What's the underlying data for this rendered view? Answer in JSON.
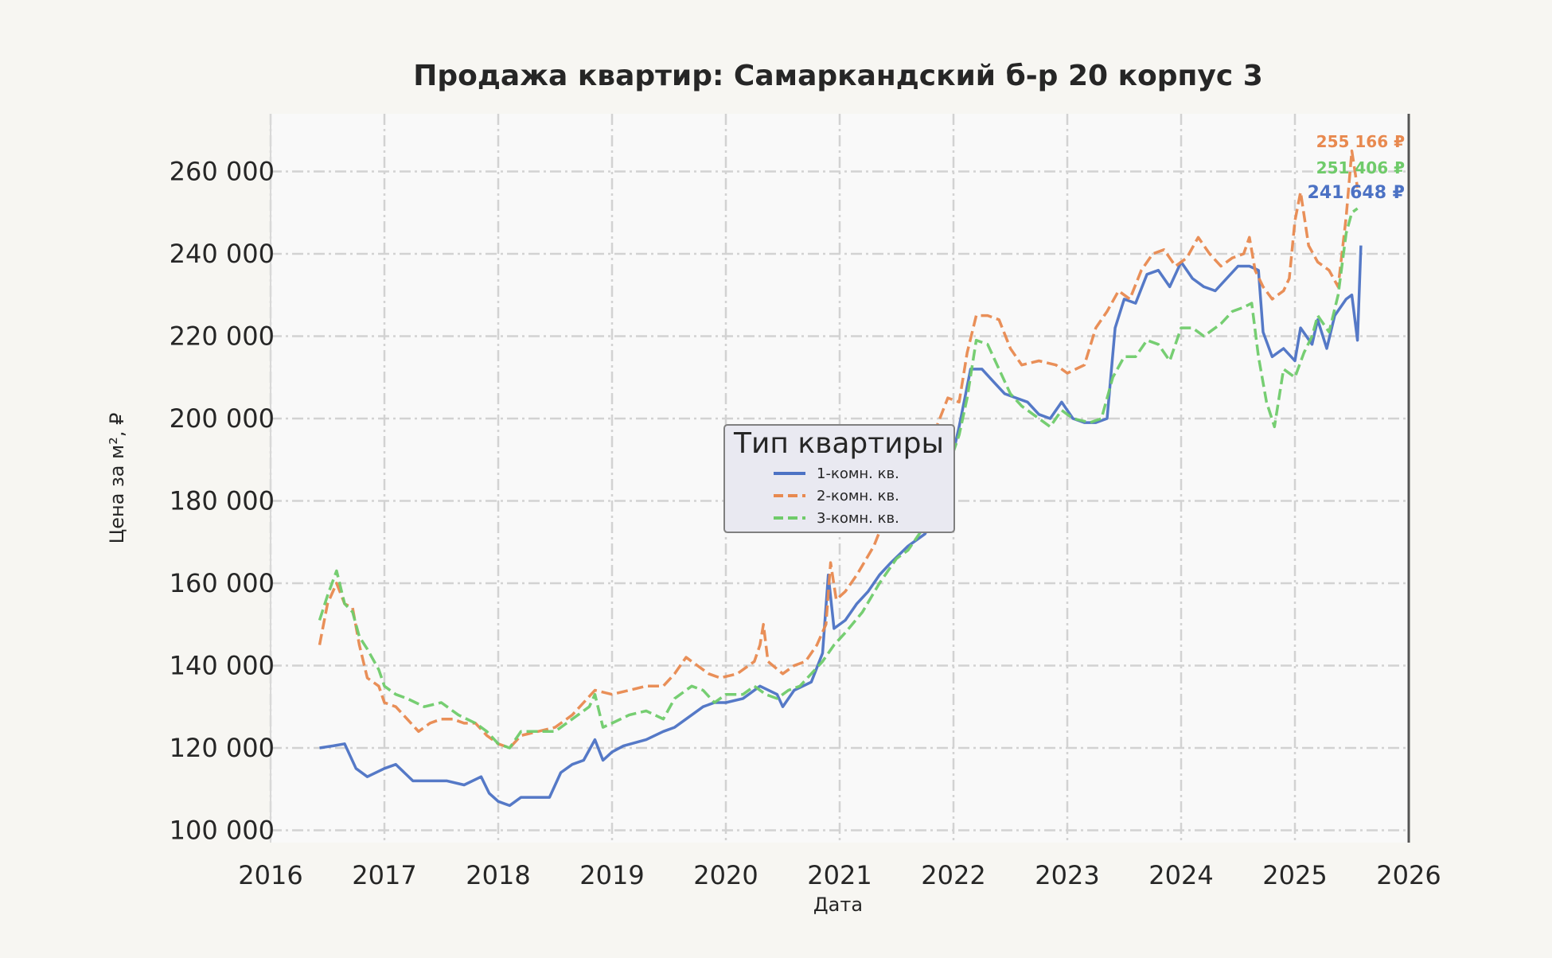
{
  "chart_data": {
    "type": "line",
    "title": "Продажа квартир: Самаркандский б-р 20 корпус 3",
    "xlabel": "Дата",
    "ylabel": "Цена за м², ₽",
    "xlim": [
      2016.0,
      2026.0
    ],
    "ylim": [
      97000,
      274000
    ],
    "x_ticks": [
      "2016",
      "2017",
      "2018",
      "2019",
      "2020",
      "2021",
      "2022",
      "2023",
      "2024",
      "2025",
      "2026"
    ],
    "y_ticks": [
      100000,
      120000,
      140000,
      160000,
      180000,
      200000,
      220000,
      240000,
      260000
    ],
    "y_tick_labels": [
      "100 000",
      "120 000",
      "140 000",
      "160 000",
      "180 000",
      "200 000",
      "220 000",
      "240 000",
      "260 000"
    ],
    "grid": true,
    "legend": {
      "title": "Тип квартиры",
      "placement": "center"
    },
    "colors": {
      "series1": "#4c72c4",
      "series2": "#e8894f",
      "series3": "#6fcb6a",
      "background": "#f7f6f2",
      "plot_bg": "#f9f9f9"
    },
    "series": [
      {
        "name": "1-комн. кв.",
        "style": "solid",
        "last_label": "241 648 ₽",
        "points": [
          [
            2016.43,
            120000
          ],
          [
            2016.55,
            120500
          ],
          [
            2016.65,
            121000
          ],
          [
            2016.75,
            115000
          ],
          [
            2016.85,
            113000
          ],
          [
            2017.0,
            115000
          ],
          [
            2017.1,
            116000
          ],
          [
            2017.25,
            112000
          ],
          [
            2017.4,
            112000
          ],
          [
            2017.55,
            112000
          ],
          [
            2017.7,
            111000
          ],
          [
            2017.85,
            113000
          ],
          [
            2017.92,
            109000
          ],
          [
            2018.0,
            107000
          ],
          [
            2018.1,
            106000
          ],
          [
            2018.2,
            108000
          ],
          [
            2018.3,
            108000
          ],
          [
            2018.45,
            108000
          ],
          [
            2018.55,
            114000
          ],
          [
            2018.65,
            116000
          ],
          [
            2018.75,
            117000
          ],
          [
            2018.85,
            122000
          ],
          [
            2018.92,
            117000
          ],
          [
            2019.0,
            119000
          ],
          [
            2019.1,
            120500
          ],
          [
            2019.3,
            122000
          ],
          [
            2019.45,
            124000
          ],
          [
            2019.55,
            125000
          ],
          [
            2019.7,
            128000
          ],
          [
            2019.8,
            130000
          ],
          [
            2019.9,
            131000
          ],
          [
            2020.0,
            131000
          ],
          [
            2020.15,
            132000
          ],
          [
            2020.3,
            135000
          ],
          [
            2020.45,
            133000
          ],
          [
            2020.5,
            130000
          ],
          [
            2020.6,
            134000
          ],
          [
            2020.75,
            136000
          ],
          [
            2020.85,
            143000
          ],
          [
            2020.9,
            162000
          ],
          [
            2020.95,
            149000
          ],
          [
            2021.05,
            151000
          ],
          [
            2021.15,
            155000
          ],
          [
            2021.25,
            158000
          ],
          [
            2021.35,
            162000
          ],
          [
            2021.45,
            165000
          ],
          [
            2021.6,
            169000
          ],
          [
            2021.75,
            172000
          ],
          [
            2021.85,
            178000
          ],
          [
            2021.95,
            186000
          ],
          [
            2022.05,
            198000
          ],
          [
            2022.15,
            212000
          ],
          [
            2022.25,
            212000
          ],
          [
            2022.35,
            209000
          ],
          [
            2022.45,
            206000
          ],
          [
            2022.55,
            205000
          ],
          [
            2022.65,
            204000
          ],
          [
            2022.75,
            201000
          ],
          [
            2022.85,
            200000
          ],
          [
            2022.95,
            204000
          ],
          [
            2023.05,
            200000
          ],
          [
            2023.15,
            199000
          ],
          [
            2023.25,
            199000
          ],
          [
            2023.35,
            200000
          ],
          [
            2023.42,
            222000
          ],
          [
            2023.5,
            229000
          ],
          [
            2023.6,
            228000
          ],
          [
            2023.7,
            235000
          ],
          [
            2023.8,
            236000
          ],
          [
            2023.9,
            232000
          ],
          [
            2024.0,
            238000
          ],
          [
            2024.1,
            234000
          ],
          [
            2024.2,
            232000
          ],
          [
            2024.3,
            231000
          ],
          [
            2024.4,
            234000
          ],
          [
            2024.5,
            237000
          ],
          [
            2024.6,
            237000
          ],
          [
            2024.68,
            236000
          ],
          [
            2024.72,
            221000
          ],
          [
            2024.8,
            215000
          ],
          [
            2024.9,
            217000
          ],
          [
            2025.0,
            214000
          ],
          [
            2025.05,
            222000
          ],
          [
            2025.15,
            218000
          ],
          [
            2025.2,
            224000
          ],
          [
            2025.28,
            217000
          ],
          [
            2025.35,
            225000
          ],
          [
            2025.45,
            229000
          ],
          [
            2025.5,
            230000
          ],
          [
            2025.55,
            219000
          ],
          [
            2025.58,
            242000
          ]
        ]
      },
      {
        "name": "2-комн. кв.",
        "style": "dashed",
        "last_label": "255 166 ₽",
        "points": [
          [
            2016.43,
            145000
          ],
          [
            2016.5,
            155000
          ],
          [
            2016.58,
            160000
          ],
          [
            2016.65,
            155000
          ],
          [
            2016.72,
            154000
          ],
          [
            2016.78,
            145000
          ],
          [
            2016.85,
            137000
          ],
          [
            2016.95,
            135000
          ],
          [
            2017.0,
            131000
          ],
          [
            2017.1,
            130000
          ],
          [
            2017.2,
            127000
          ],
          [
            2017.3,
            124000
          ],
          [
            2017.4,
            126000
          ],
          [
            2017.5,
            127000
          ],
          [
            2017.6,
            127000
          ],
          [
            2017.7,
            126000
          ],
          [
            2017.8,
            126000
          ],
          [
            2017.9,
            123000
          ],
          [
            2018.0,
            121000
          ],
          [
            2018.1,
            120000
          ],
          [
            2018.2,
            123000
          ],
          [
            2018.35,
            124000
          ],
          [
            2018.5,
            125000
          ],
          [
            2018.65,
            128000
          ],
          [
            2018.75,
            131000
          ],
          [
            2018.85,
            134000
          ],
          [
            2019.0,
            133000
          ],
          [
            2019.15,
            134000
          ],
          [
            2019.3,
            135000
          ],
          [
            2019.45,
            135000
          ],
          [
            2019.55,
            138000
          ],
          [
            2019.65,
            142000
          ],
          [
            2019.75,
            140000
          ],
          [
            2019.85,
            138000
          ],
          [
            2019.95,
            137000
          ],
          [
            2020.1,
            138000
          ],
          [
            2020.25,
            141000
          ],
          [
            2020.3,
            145000
          ],
          [
            2020.33,
            150000
          ],
          [
            2020.37,
            141000
          ],
          [
            2020.5,
            138000
          ],
          [
            2020.6,
            140000
          ],
          [
            2020.7,
            141000
          ],
          [
            2020.8,
            145000
          ],
          [
            2020.88,
            150000
          ],
          [
            2020.92,
            165000
          ],
          [
            2020.97,
            156000
          ],
          [
            2021.05,
            158000
          ],
          [
            2021.15,
            162000
          ],
          [
            2021.3,
            169000
          ],
          [
            2021.4,
            176000
          ],
          [
            2021.5,
            183000
          ],
          [
            2021.65,
            189000
          ],
          [
            2021.78,
            193000
          ],
          [
            2021.88,
            200000
          ],
          [
            2021.95,
            205000
          ],
          [
            2022.05,
            204000
          ],
          [
            2022.12,
            216000
          ],
          [
            2022.2,
            225000
          ],
          [
            2022.3,
            225000
          ],
          [
            2022.4,
            224000
          ],
          [
            2022.5,
            217000
          ],
          [
            2022.6,
            213000
          ],
          [
            2022.75,
            214000
          ],
          [
            2022.9,
            213000
          ],
          [
            2023.0,
            211000
          ],
          [
            2023.15,
            213000
          ],
          [
            2023.25,
            222000
          ],
          [
            2023.35,
            226000
          ],
          [
            2023.45,
            231000
          ],
          [
            2023.55,
            229000
          ],
          [
            2023.65,
            236000
          ],
          [
            2023.75,
            240000
          ],
          [
            2023.85,
            241000
          ],
          [
            2023.95,
            237000
          ],
          [
            2024.05,
            239000
          ],
          [
            2024.15,
            244000
          ],
          [
            2024.25,
            240000
          ],
          [
            2024.35,
            237000
          ],
          [
            2024.45,
            239000
          ],
          [
            2024.55,
            240000
          ],
          [
            2024.6,
            244000
          ],
          [
            2024.65,
            236000
          ],
          [
            2024.72,
            232000
          ],
          [
            2024.8,
            229000
          ],
          [
            2024.9,
            231000
          ],
          [
            2024.95,
            234000
          ],
          [
            2025.0,
            248000
          ],
          [
            2025.05,
            255000
          ],
          [
            2025.12,
            242000
          ],
          [
            2025.2,
            238000
          ],
          [
            2025.3,
            236000
          ],
          [
            2025.38,
            232000
          ],
          [
            2025.45,
            249000
          ],
          [
            2025.5,
            265000
          ],
          [
            2025.55,
            256000
          ]
        ]
      },
      {
        "name": "3-комн. кв.",
        "style": "dashed",
        "last_label": "251 406 ₽",
        "points": [
          [
            2016.43,
            151000
          ],
          [
            2016.5,
            157000
          ],
          [
            2016.58,
            163000
          ],
          [
            2016.65,
            155000
          ],
          [
            2016.72,
            153000
          ],
          [
            2016.78,
            147000
          ],
          [
            2016.85,
            144000
          ],
          [
            2016.95,
            139000
          ],
          [
            2017.0,
            135000
          ],
          [
            2017.1,
            133000
          ],
          [
            2017.2,
            132000
          ],
          [
            2017.35,
            130000
          ],
          [
            2017.5,
            131000
          ],
          [
            2017.65,
            128000
          ],
          [
            2017.8,
            126000
          ],
          [
            2017.9,
            124000
          ],
          [
            2018.0,
            121000
          ],
          [
            2018.1,
            120000
          ],
          [
            2018.2,
            124000
          ],
          [
            2018.35,
            124000
          ],
          [
            2018.5,
            124000
          ],
          [
            2018.6,
            126000
          ],
          [
            2018.7,
            128000
          ],
          [
            2018.8,
            130000
          ],
          [
            2018.85,
            133000
          ],
          [
            2018.92,
            125000
          ],
          [
            2019.0,
            126000
          ],
          [
            2019.15,
            128000
          ],
          [
            2019.3,
            129000
          ],
          [
            2019.45,
            127000
          ],
          [
            2019.55,
            132000
          ],
          [
            2019.7,
            135000
          ],
          [
            2019.8,
            134000
          ],
          [
            2019.9,
            131000
          ],
          [
            2020.0,
            133000
          ],
          [
            2020.15,
            133000
          ],
          [
            2020.25,
            135000
          ],
          [
            2020.35,
            133000
          ],
          [
            2020.45,
            132000
          ],
          [
            2020.55,
            134000
          ],
          [
            2020.65,
            135000
          ],
          [
            2020.75,
            138000
          ],
          [
            2020.85,
            141000
          ],
          [
            2020.95,
            145000
          ],
          [
            2021.05,
            148000
          ],
          [
            2021.2,
            153000
          ],
          [
            2021.35,
            160000
          ],
          [
            2021.5,
            166000
          ],
          [
            2021.6,
            168000
          ],
          [
            2021.75,
            174000
          ],
          [
            2021.85,
            180000
          ],
          [
            2021.95,
            188000
          ],
          [
            2022.05,
            196000
          ],
          [
            2022.12,
            205000
          ],
          [
            2022.2,
            219000
          ],
          [
            2022.3,
            218000
          ],
          [
            2022.4,
            212000
          ],
          [
            2022.5,
            206000
          ],
          [
            2022.6,
            203000
          ],
          [
            2022.75,
            200000
          ],
          [
            2022.85,
            198000
          ],
          [
            2022.95,
            202000
          ],
          [
            2023.05,
            200000
          ],
          [
            2023.2,
            199000
          ],
          [
            2023.3,
            200000
          ],
          [
            2023.4,
            210000
          ],
          [
            2023.5,
            215000
          ],
          [
            2023.6,
            215000
          ],
          [
            2023.7,
            219000
          ],
          [
            2023.8,
            218000
          ],
          [
            2023.9,
            214000
          ],
          [
            2024.0,
            222000
          ],
          [
            2024.1,
            222000
          ],
          [
            2024.2,
            220000
          ],
          [
            2024.35,
            223000
          ],
          [
            2024.45,
            226000
          ],
          [
            2024.55,
            227000
          ],
          [
            2024.62,
            228000
          ],
          [
            2024.68,
            215000
          ],
          [
            2024.75,
            204000
          ],
          [
            2024.82,
            198000
          ],
          [
            2024.9,
            212000
          ],
          [
            2025.0,
            210000
          ],
          [
            2025.08,
            216000
          ],
          [
            2025.15,
            220000
          ],
          [
            2025.2,
            225000
          ],
          [
            2025.3,
            221000
          ],
          [
            2025.38,
            230000
          ],
          [
            2025.45,
            245000
          ],
          [
            2025.5,
            250000
          ],
          [
            2025.55,
            251000
          ]
        ]
      }
    ]
  }
}
